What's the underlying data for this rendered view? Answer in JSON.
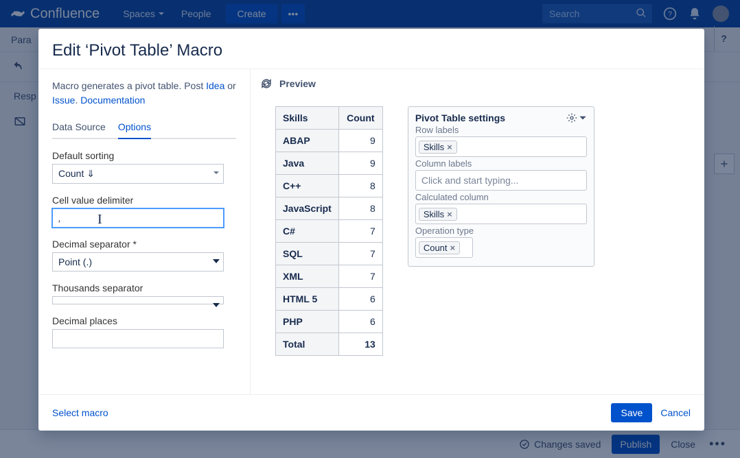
{
  "topnav": {
    "brand": "Confluence",
    "spaces": "Spaces",
    "people": "People",
    "create": "Create",
    "search_placeholder": "Search"
  },
  "page": {
    "para_label": "Para",
    "resp_label": "Resp"
  },
  "bottombar": {
    "saved": "Changes saved",
    "publish": "Publish",
    "close": "Close"
  },
  "modal": {
    "title": "Edit ‘Pivot Table’ Macro",
    "desc1": "Macro generates a pivot table. Post ",
    "idea": "Idea",
    "or": " or ",
    "issue": "Issue",
    "dot": ". ",
    "docs": "Documentation",
    "tabs": {
      "data_source": "Data Source",
      "options": "Options"
    },
    "fields": {
      "default_sorting_label": "Default sorting",
      "default_sorting_value": "Count ⇓",
      "cell_delim_label": "Cell value delimiter",
      "cell_delim_value": ",",
      "decimal_sep_label": "Decimal separator *",
      "decimal_sep_value": "Point (.)",
      "thousand_sep_label": "Thousands separator",
      "thousand_sep_value": "",
      "decimal_places_label": "Decimal places",
      "decimal_places_value": ""
    },
    "footer": {
      "select_macro": "Select macro",
      "save": "Save",
      "cancel": "Cancel"
    }
  },
  "preview": {
    "label": "Preview",
    "table": {
      "col1": "Skills",
      "col2": "Count",
      "rows": [
        [
          "ABAP",
          "9"
        ],
        [
          "Java",
          "9"
        ],
        [
          "C++",
          "8"
        ],
        [
          "JavaScript",
          "8"
        ],
        [
          "C#",
          "7"
        ],
        [
          "SQL",
          "7"
        ],
        [
          "XML",
          "7"
        ],
        [
          "HTML 5",
          "6"
        ],
        [
          "PHP",
          "6"
        ]
      ],
      "total_label": "Total",
      "total_value": "13"
    },
    "settings": {
      "title": "Pivot Table settings",
      "row_labels": "Row labels",
      "row_tag": "Skills",
      "col_labels": "Column labels",
      "col_placeholder": "Click and start typing...",
      "calc_col": "Calculated column",
      "calc_tag": "Skills",
      "op_type": "Operation type",
      "op_tag": "Count"
    }
  },
  "help_btn": "?"
}
